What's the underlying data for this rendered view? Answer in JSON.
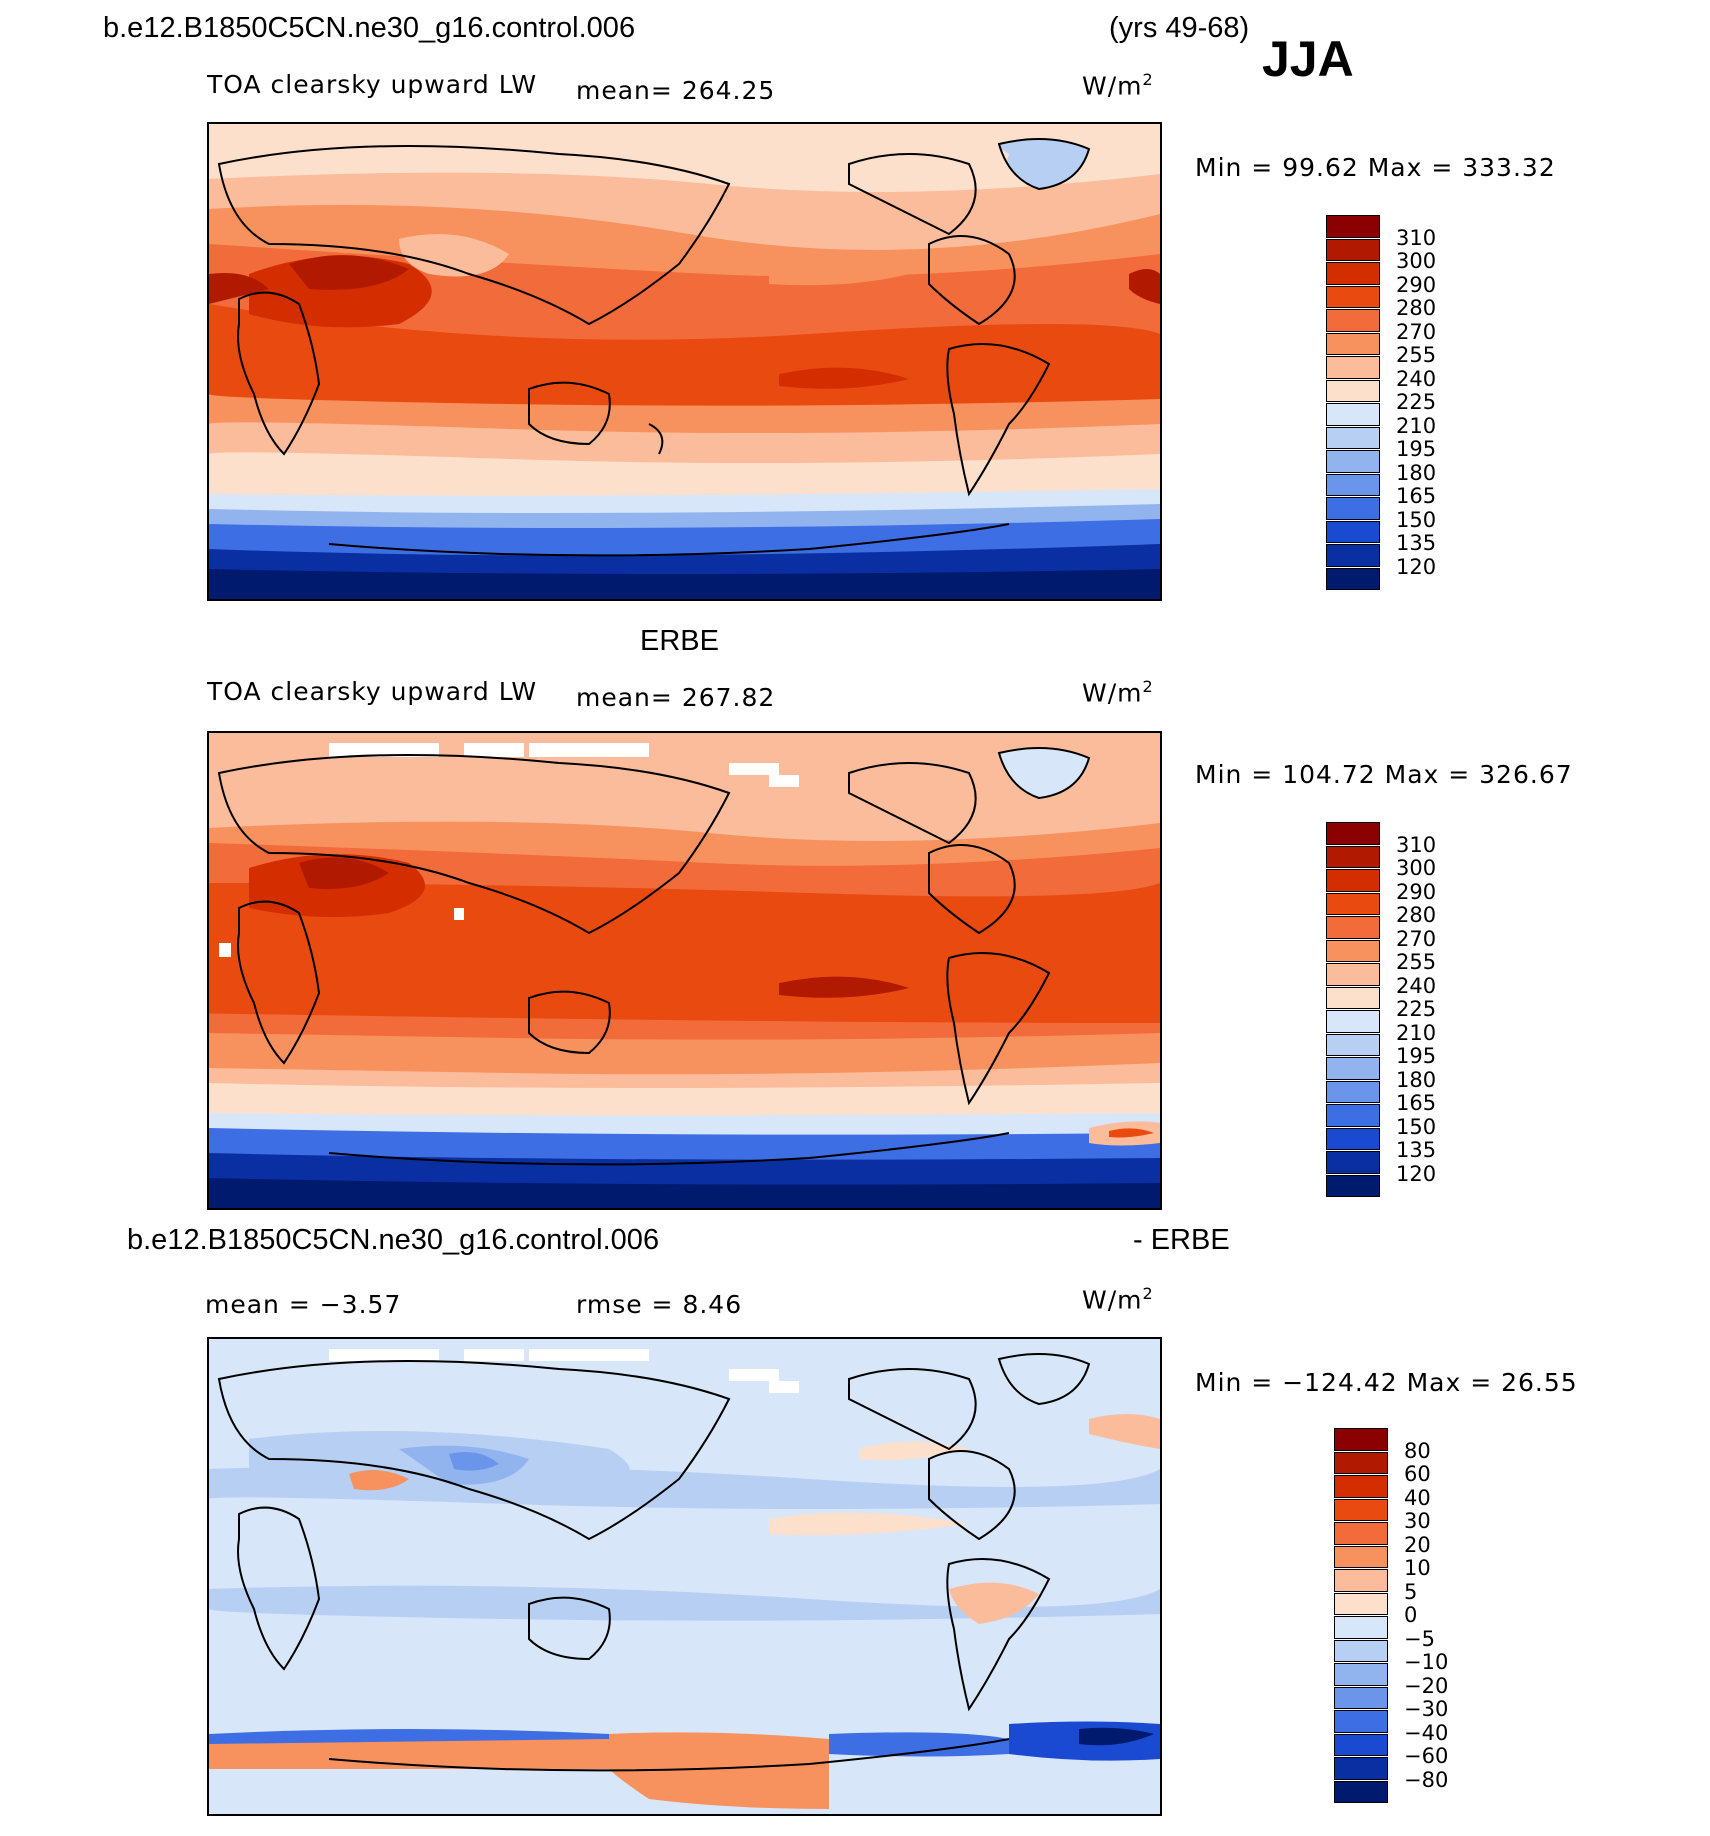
{
  "header": {
    "case_name": "b.e12.B1850C5CN.ne30_g16.control.006",
    "years": "(yrs 49-68)",
    "season": "JJA"
  },
  "panels": [
    {
      "id": "model",
      "field": "TOA clearsky upward LW",
      "mean_label": "mean=",
      "mean_value": "264.25",
      "units": "W/m",
      "units_exp": "2",
      "minmax": "Min =   99.62 Max = 333.32"
    },
    {
      "id": "obs",
      "dataset": "ERBE",
      "field": "TOA clearsky upward LW",
      "mean_label": "mean=",
      "mean_value": "267.82",
      "units": "W/m",
      "units_exp": "2",
      "minmax": "Min = 104.72 Max = 326.67"
    },
    {
      "id": "diff",
      "title_left": "b.e12.B1850C5CN.ne30_g16.control.006",
      "title_right": "- ERBE",
      "mean_text": "mean =   −3.57",
      "rmse_text": "rmse =    8.46",
      "units": "W/m",
      "units_exp": "2",
      "minmax": "Min = −124.42 Max =   26.55"
    }
  ],
  "colorbar_abs": {
    "labels": [
      "310",
      "300",
      "290",
      "280",
      "270",
      "255",
      "240",
      "225",
      "210",
      "195",
      "180",
      "165",
      "150",
      "135",
      "120"
    ],
    "colors": [
      "#8b0000",
      "#b21a00",
      "#d42e00",
      "#e94a10",
      "#f26b3a",
      "#f7925f",
      "#fbbc9b",
      "#fde0cc",
      "#d7e6f8",
      "#b6cff2",
      "#91b4ee",
      "#6a95ea",
      "#3d6ee3",
      "#1a4ad1",
      "#0a2fa3",
      "#001a6e"
    ]
  },
  "colorbar_diff": {
    "labels": [
      "80",
      "60",
      "40",
      "30",
      "20",
      "10",
      "5",
      "0",
      "−5",
      "−10",
      "−20",
      "−30",
      "−40",
      "−60",
      "−80"
    ],
    "colors": [
      "#8b0000",
      "#b21a00",
      "#d42e00",
      "#e94a10",
      "#f26b3a",
      "#f7925f",
      "#fbbc9b",
      "#fde0cc",
      "#d7e6f8",
      "#b6cff2",
      "#91b4ee",
      "#6a95ea",
      "#3d6ee3",
      "#1a4ad1",
      "#0a2fa3",
      "#001a6e"
    ]
  }
}
